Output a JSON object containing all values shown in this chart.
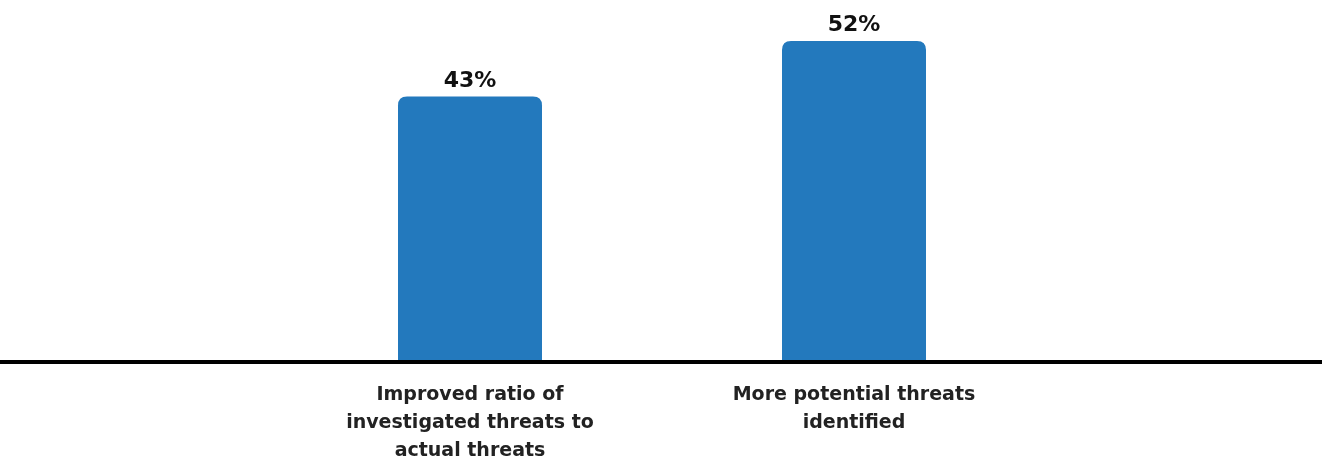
{
  "chart_data": {
    "type": "bar",
    "categories": [
      "Improved ratio of investigated threats to actual threats",
      "More potential threats identified"
    ],
    "values": [
      43,
      52
    ],
    "value_labels": [
      "43%",
      "52%"
    ],
    "color": "#2379bd"
  }
}
